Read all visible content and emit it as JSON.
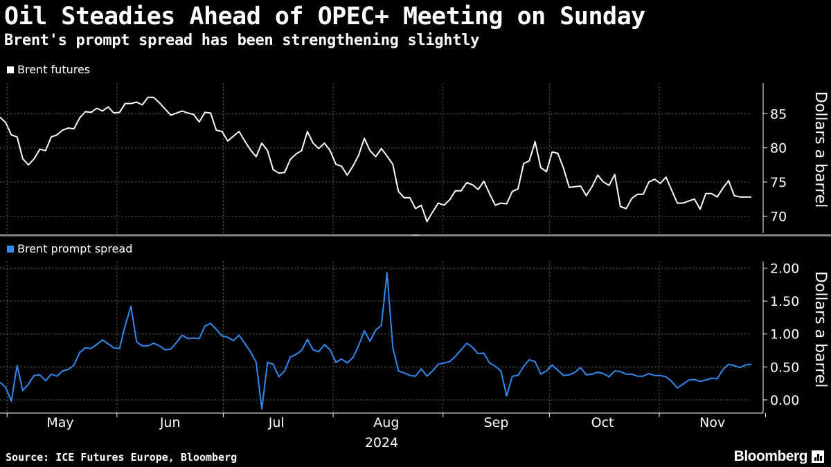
{
  "header": {
    "title": "Oil Steadies Ahead of OPEC+ Meeting on Sunday",
    "subtitle": "Brent's prompt spread has been strengthening slightly"
  },
  "footer": {
    "source": "Source: ICE Futures Europe, Bloomberg",
    "brand": "Bloomberg"
  },
  "colors": {
    "background": "#000000",
    "brent_line": "#ffffff",
    "spread_line": "#2f8bf0",
    "grid": "#666666"
  },
  "chart_data": [
    {
      "type": "line",
      "name": "Brent futures",
      "legend": "Brent futures",
      "ylabel": "Dollars a barrel",
      "ylim": [
        67.5,
        89.5
      ],
      "yticks": [
        70,
        75,
        80,
        85
      ],
      "ytick_labels": [
        "70",
        "75",
        "80",
        "85"
      ],
      "x_start": "2024-04-29",
      "x_end": "2024-11-27",
      "values": [
        84.5,
        83.7,
        81.9,
        81.6,
        78.4,
        77.5,
        78.4,
        79.8,
        79.6,
        81.6,
        81.9,
        82.6,
        82.9,
        82.8,
        84.4,
        85.3,
        85.2,
        85.8,
        85.4,
        86.0,
        85.1,
        85.2,
        86.5,
        86.5,
        86.7,
        86.3,
        87.4,
        87.4,
        86.6,
        85.7,
        84.8,
        85.1,
        85.4,
        85.1,
        84.9,
        83.8,
        85.2,
        85.1,
        82.6,
        82.4,
        81.0,
        81.7,
        82.4,
        81.0,
        79.7,
        78.7,
        80.7,
        79.6,
        76.8,
        76.3,
        76.4,
        78.3,
        79.1,
        79.6,
        82.4,
        80.7,
        79.9,
        80.7,
        79.6,
        77.6,
        77.3,
        76.0,
        77.3,
        78.9,
        81.4,
        79.6,
        78.7,
        79.9,
        78.8,
        77.6,
        73.6,
        72.7,
        72.7,
        71.1,
        71.6,
        69.2,
        70.6,
        71.9,
        71.6,
        72.4,
        73.7,
        73.7,
        74.9,
        74.6,
        73.9,
        75.1,
        73.3,
        71.6,
        71.9,
        71.8,
        73.6,
        74.0,
        77.7,
        78.1,
        80.9,
        77.1,
        76.5,
        79.4,
        79.2,
        77.0,
        74.2,
        74.3,
        74.4,
        73.0,
        74.3,
        76.0,
        75.0,
        74.5,
        76.1,
        71.4,
        71.1,
        72.6,
        73.2,
        73.2,
        75.0,
        75.4,
        74.8,
        75.7,
        73.8,
        71.9,
        71.9,
        72.2,
        72.5,
        71.0,
        73.3,
        73.3,
        72.8,
        74.1,
        75.2,
        73.0,
        72.8,
        72.8,
        72.8
      ]
    },
    {
      "type": "line",
      "name": "Brent prompt spread",
      "legend": "Brent prompt spread",
      "ylabel": "Dollars a barrel",
      "ylim": [
        -0.2,
        2.1
      ],
      "yticks": [
        0,
        0.5,
        1.0,
        1.5,
        2.0
      ],
      "ytick_labels": [
        "0.00",
        "0.50",
        "1.00",
        "1.50",
        "2.00"
      ],
      "x_start": "2024-04-29",
      "x_end": "2024-11-27",
      "values": [
        0.27,
        0.19,
        -0.02,
        0.52,
        0.14,
        0.24,
        0.37,
        0.38,
        0.29,
        0.39,
        0.36,
        0.44,
        0.46,
        0.53,
        0.72,
        0.79,
        0.78,
        0.84,
        0.91,
        0.85,
        0.79,
        0.78,
        1.13,
        1.42,
        0.88,
        0.82,
        0.82,
        0.86,
        0.82,
        0.76,
        0.77,
        0.87,
        0.98,
        0.93,
        0.94,
        0.93,
        1.12,
        1.16,
        1.07,
        0.97,
        0.95,
        0.9,
        0.98,
        0.86,
        0.73,
        0.57,
        -0.14,
        0.57,
        0.54,
        0.35,
        0.44,
        0.65,
        0.69,
        0.75,
        0.92,
        0.76,
        0.73,
        0.84,
        0.76,
        0.57,
        0.62,
        0.56,
        0.64,
        0.82,
        1.05,
        0.89,
        1.06,
        1.13,
        1.93,
        0.8,
        0.44,
        0.41,
        0.37,
        0.36,
        0.47,
        0.36,
        0.44,
        0.54,
        0.56,
        0.58,
        0.66,
        0.76,
        0.86,
        0.8,
        0.7,
        0.71,
        0.56,
        0.51,
        0.44,
        0.06,
        0.36,
        0.37,
        0.51,
        0.61,
        0.58,
        0.39,
        0.44,
        0.53,
        0.45,
        0.37,
        0.38,
        0.42,
        0.49,
        0.38,
        0.39,
        0.42,
        0.4,
        0.35,
        0.44,
        0.43,
        0.39,
        0.39,
        0.36,
        0.36,
        0.4,
        0.37,
        0.37,
        0.35,
        0.28,
        0.18,
        0.24,
        0.3,
        0.31,
        0.28,
        0.3,
        0.33,
        0.32,
        0.46,
        0.54,
        0.52,
        0.49,
        0.53,
        0.54
      ]
    }
  ],
  "x_axis": {
    "tick_labels": [
      "May",
      "Jun",
      "Jul",
      "Aug",
      "Sep",
      "Oct",
      "Nov"
    ],
    "year_label": "2024"
  }
}
